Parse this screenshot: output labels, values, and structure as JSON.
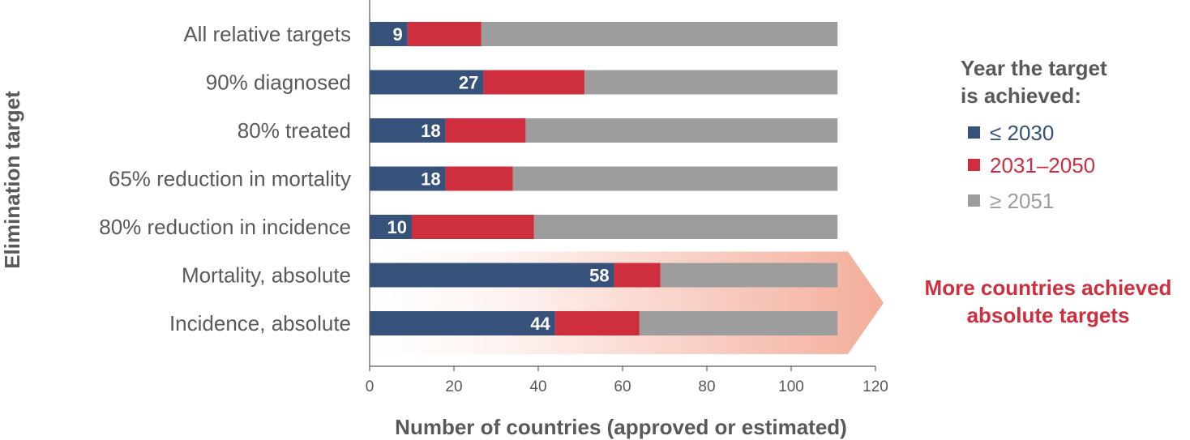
{
  "chart_data": {
    "type": "bar",
    "orientation": "horizontal",
    "stacked": true,
    "ylabel": "Elimination target",
    "xlabel": "Number of countries (approved or estimated)",
    "xlim": [
      0,
      120
    ],
    "xticks": [
      0,
      20,
      40,
      60,
      80,
      100,
      120
    ],
    "categories": [
      "All relative targets",
      "90% diagnosed",
      "80% treated",
      "65% reduction in mortality",
      "80% reduction in incidence",
      "Mortality, absolute",
      "Incidence, absolute"
    ],
    "series": [
      {
        "name": "≤ 2030",
        "color": "#36527a",
        "values": [
          9,
          27,
          18,
          18,
          10,
          58,
          44
        ]
      },
      {
        "name": "2031–2050",
        "color": "#cf2e3e",
        "values": [
          17.5,
          24,
          19,
          16,
          29,
          11,
          20
        ]
      },
      {
        "name": "≥ 2051",
        "color": "#9d9d9d",
        "values": [
          84.5,
          60,
          74,
          77,
          72,
          42,
          47
        ]
      }
    ],
    "data_labels": [
      "9",
      "27",
      "18",
      "18",
      "10",
      "58",
      "44"
    ],
    "legend": {
      "title_lines": [
        "Year the target",
        "is achieved:"
      ],
      "placement": "right"
    },
    "annotation": {
      "lines": [
        "More countries achieved",
        "absolute targets"
      ],
      "color": "#cf2e3e",
      "applies_to": [
        "Mortality, absolute",
        "Incidence, absolute"
      ]
    },
    "grid": false,
    "colors": {
      "axis_text": "#58595b",
      "arrow_fill": "#f2a48f"
    }
  }
}
